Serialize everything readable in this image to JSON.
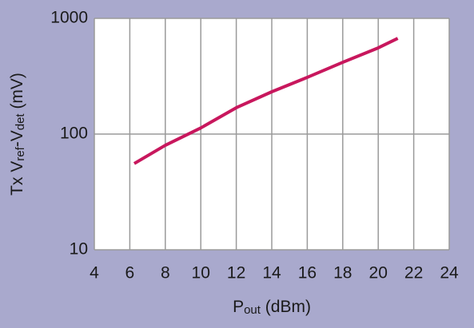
{
  "chart_data": {
    "type": "line",
    "x_label_parts": [
      "P",
      "out",
      " (dBm)"
    ],
    "y_label_parts": [
      "Tx V",
      "ref",
      "-V",
      "det",
      " (mV)"
    ],
    "x": [
      6.25,
      8,
      10,
      12,
      14,
      16,
      18,
      20,
      21.1
    ],
    "series": [
      {
        "color": "#c8175d",
        "values": [
          55.6,
          80,
          113,
          169,
          232,
          309,
          417,
          556,
          672
        ]
      }
    ],
    "xlim": [
      4,
      24
    ],
    "xticks": [
      4,
      6,
      8,
      10,
      12,
      14,
      16,
      18,
      20,
      22,
      24
    ],
    "ylim": [
      10,
      1000
    ],
    "yticks": [
      10,
      100,
      1000
    ],
    "log_y": true,
    "grid": true
  }
}
